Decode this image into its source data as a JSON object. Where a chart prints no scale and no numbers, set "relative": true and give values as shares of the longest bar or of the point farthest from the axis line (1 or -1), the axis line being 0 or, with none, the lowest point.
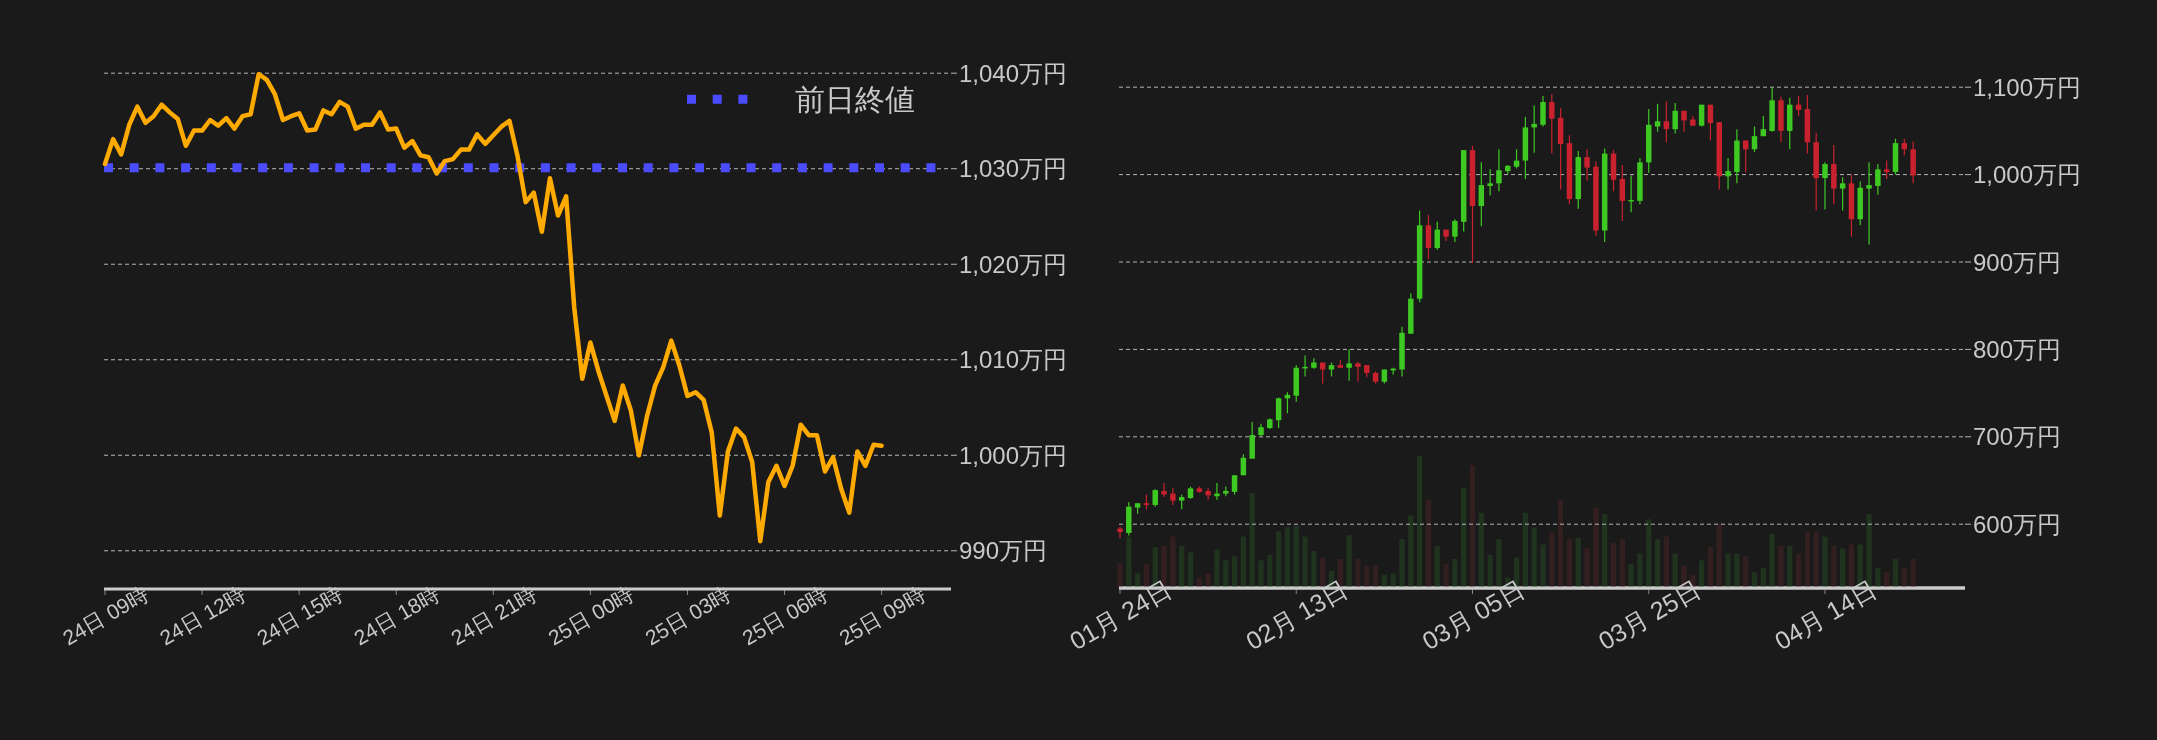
{
  "chart_data": [
    {
      "type": "line",
      "ylim": [
        986,
        1040
      ],
      "grid": "y",
      "legend": "top right",
      "categories": [
        "24日 09時",
        null,
        null,
        null,
        null,
        null,
        null,
        null,
        null,
        null,
        null,
        null,
        "24日 12時",
        null,
        null,
        null,
        null,
        null,
        null,
        null,
        null,
        null,
        null,
        null,
        "24日 15時",
        null,
        null,
        null,
        null,
        null,
        null,
        null,
        null,
        null,
        null,
        null,
        "24日 18時",
        null,
        null,
        null,
        null,
        null,
        null,
        null,
        null,
        null,
        null,
        null,
        "24日 21時",
        null,
        null,
        null,
        null,
        null,
        null,
        null,
        null,
        null,
        null,
        null,
        "25日 00時",
        null,
        null,
        null,
        null,
        null,
        null,
        null,
        null,
        null,
        null,
        null,
        "25日 03時",
        null,
        null,
        null,
        null,
        null,
        null,
        null,
        null,
        null,
        null,
        null,
        "25日 06時",
        null,
        null,
        null,
        null,
        null,
        null,
        null,
        null,
        null,
        null,
        null,
        "25日 09時"
      ],
      "yticks": [
        {
          "value": 990,
          "label": "990万円"
        },
        {
          "value": 1000,
          "label": "1,000万円"
        },
        {
          "value": 1010,
          "label": "1,010万円"
        },
        {
          "value": 1020,
          "label": "1,020万円"
        },
        {
          "value": 1030,
          "label": "1,030万円"
        },
        {
          "value": 1040,
          "label": "1,040万円"
        }
      ],
      "ref_lines": [
        {
          "axis": "y",
          "value": 1030.1,
          "label": "前日終値",
          "color": "#4b4bff",
          "line_style": "dotted"
        }
      ],
      "series": [
        {
          "color": "#ffaa00",
          "values": [
            1030.5,
            1033.1,
            1031.5,
            1034.6,
            1036.5,
            1034.8,
            1035.5,
            1036.7,
            1035.9,
            1035.2,
            1032.4,
            1034.0,
            1034.0,
            1035.1,
            1034.5,
            1035.3,
            1034.2,
            1035.5,
            1035.7,
            1039.9,
            1039.3,
            1037.8,
            1035.1,
            1035.5,
            1035.8,
            1034.0,
            1034.1,
            1036.1,
            1035.7,
            1037.0,
            1036.5,
            1034.2,
            1034.6,
            1034.6,
            1035.9,
            1034.1,
            1034.2,
            1032.2,
            1032.9,
            1031.4,
            1031.2,
            1029.5,
            1030.8,
            1031.0,
            1032.0,
            1032.0,
            1033.6,
            1032.6,
            1033.5,
            1034.4,
            1035.0,
            1031.3,
            1026.5,
            1027.5,
            1023.4,
            1029.0,
            1025.1,
            1027.1,
            1015.5,
            1008.0,
            1011.8,
            1008.8,
            1006.2,
            1003.6,
            1007.3,
            1004.7,
            1000.0,
            1004.1,
            1007.3,
            1009.2,
            1012.0,
            1009.4,
            1006.2,
            1006.6,
            1005.8,
            1002.4,
            993.7,
            1000.4,
            1002.8,
            1001.9,
            999.3,
            991.0,
            997.2,
            998.9,
            996.8,
            998.9,
            1003.2,
            1002.1,
            1002.1,
            998.3,
            999.8,
            996.5,
            994.0,
            1000.4,
            998.9,
            1001.1,
            1001.0
          ]
        }
      ]
    },
    {
      "type": "candlestick",
      "ylim": [
        527,
        1100
      ],
      "grid": "y",
      "yticks": [
        {
          "value": 600,
          "label": "600万円"
        },
        {
          "value": 700,
          "label": "700万円"
        },
        {
          "value": 800,
          "label": "800万円"
        },
        {
          "value": 900,
          "label": "900万円"
        },
        {
          "value": 1000,
          "label": "1,000万円"
        },
        {
          "value": 1100,
          "label": "1,100万円"
        }
      ],
      "categories": [
        "01月 24日",
        null,
        null,
        null,
        null,
        null,
        null,
        null,
        null,
        null,
        null,
        null,
        null,
        null,
        null,
        null,
        null,
        null,
        null,
        null,
        "02月 13日",
        null,
        null,
        null,
        null,
        null,
        null,
        null,
        null,
        null,
        null,
        null,
        null,
        null,
        null,
        null,
        null,
        null,
        null,
        null,
        "03月 05日",
        null,
        null,
        null,
        null,
        null,
        null,
        null,
        null,
        null,
        null,
        null,
        null,
        null,
        null,
        null,
        null,
        null,
        null,
        null,
        "03月 25日",
        null,
        null,
        null,
        null,
        null,
        null,
        null,
        null,
        null,
        null,
        null,
        null,
        null,
        null,
        null,
        null,
        null,
        null,
        null,
        "04月 14日",
        null,
        null,
        null,
        null,
        null,
        null,
        null,
        null,
        null,
        null
      ],
      "ohlc": [
        [
          595,
          597,
          584,
          591
        ],
        [
          590,
          625,
          587,
          620
        ],
        [
          619,
          624,
          612,
          624
        ],
        [
          624,
          634,
          617,
          622
        ],
        [
          622,
          640,
          620,
          639
        ],
        [
          638,
          647,
          631,
          634
        ],
        [
          635,
          641,
          622,
          627
        ],
        [
          627,
          634,
          617,
          631
        ],
        [
          630,
          643,
          629,
          641
        ],
        [
          641,
          643,
          636,
          637
        ],
        [
          638,
          641,
          628,
          633
        ],
        [
          632,
          647,
          628,
          635
        ],
        [
          635,
          643,
          632,
          638
        ],
        [
          637,
          656,
          634,
          656
        ],
        [
          656,
          680,
          656,
          676
        ],
        [
          675,
          717,
          675,
          702
        ],
        [
          702,
          715,
          701,
          711
        ],
        [
          710,
          721,
          709,
          720
        ],
        [
          719,
          745,
          710,
          744
        ],
        [
          744,
          751,
          727,
          748
        ],
        [
          747,
          782,
          740,
          779
        ],
        [
          779,
          793,
          769,
          780
        ],
        [
          779,
          790,
          778,
          785
        ],
        [
          785,
          785,
          761,
          777
        ],
        [
          777,
          785,
          769,
          782
        ],
        [
          782,
          788,
          779,
          779
        ],
        [
          779,
          800,
          764,
          784
        ],
        [
          784,
          786,
          763,
          780
        ],
        [
          782,
          782,
          768,
          773
        ],
        [
          773,
          775,
          761,
          763
        ],
        [
          763,
          777,
          761,
          777
        ],
        [
          776,
          779,
          771,
          778
        ],
        [
          777,
          826,
          769,
          819
        ],
        [
          818,
          864,
          818,
          858
        ],
        [
          858,
          959,
          854,
          942
        ],
        [
          942,
          954,
          903,
          916
        ],
        [
          916,
          946,
          914,
          937
        ],
        [
          937,
          937,
          924,
          929
        ],
        [
          929,
          949,
          923,
          947
        ],
        [
          946,
          1028,
          935,
          1028
        ],
        [
          1028,
          1033,
          899,
          964
        ],
        [
          964,
          1014,
          941,
          988
        ],
        [
          987,
          1006,
          976,
          990
        ],
        [
          990,
          1029,
          981,
          1005
        ],
        [
          1004,
          1011,
          1001,
          1010
        ],
        [
          1009,
          1029,
          1007,
          1016
        ],
        [
          1016,
          1066,
          995,
          1054
        ],
        [
          1054,
          1079,
          1025,
          1058
        ],
        [
          1057,
          1090,
          1055,
          1083
        ],
        [
          1083,
          1092,
          1024,
          1064
        ],
        [
          1065,
          1076,
          983,
          1035
        ],
        [
          1036,
          1045,
          966,
          972
        ],
        [
          972,
          1027,
          961,
          1020
        ],
        [
          1020,
          1029,
          993,
          1008
        ],
        [
          1009,
          1015,
          930,
          936
        ],
        [
          936,
          1030,
          923,
          1024
        ],
        [
          1024,
          1028,
          981,
          994
        ],
        [
          995,
          1011,
          947,
          970
        ],
        [
          970,
          999,
          957,
          971
        ],
        [
          970,
          1019,
          966,
          1014
        ],
        [
          1014,
          1075,
          1002,
          1057
        ],
        [
          1055,
          1081,
          1049,
          1061
        ],
        [
          1061,
          1084,
          1037,
          1052
        ],
        [
          1052,
          1082,
          1047,
          1073
        ],
        [
          1073,
          1073,
          1049,
          1062
        ],
        [
          1063,
          1067,
          1056,
          1056
        ],
        [
          1056,
          1080,
          1055,
          1080
        ],
        [
          1080,
          1080,
          1039,
          1059
        ],
        [
          1060,
          1060,
          983,
          998
        ],
        [
          998,
          1019,
          983,
          1004
        ],
        [
          1003,
          1052,
          990,
          1039
        ],
        [
          1039,
          1039,
          1003,
          1029
        ],
        [
          1029,
          1055,
          1026,
          1044
        ],
        [
          1044,
          1067,
          1044,
          1052
        ],
        [
          1050,
          1100,
          1049,
          1085
        ],
        [
          1085,
          1089,
          1037,
          1050
        ],
        [
          1050,
          1088,
          1029,
          1080
        ],
        [
          1080,
          1090,
          1067,
          1074
        ],
        [
          1075,
          1091,
          1024,
          1037
        ],
        [
          1037,
          1048,
          959,
          996
        ],
        [
          996,
          1014,
          960,
          1012
        ],
        [
          1012,
          1034,
          966,
          984
        ],
        [
          984,
          997,
          959,
          990
        ],
        [
          990,
          1000,
          929,
          949
        ],
        [
          949,
          992,
          942,
          985
        ],
        [
          984,
          1014,
          920,
          988
        ],
        [
          987,
          1012,
          977,
          1006
        ],
        [
          1006,
          1016,
          995,
          1003
        ],
        [
          1003,
          1041,
          1000,
          1036
        ],
        [
          1036,
          1041,
          1022,
          1029
        ],
        [
          1029,
          1038,
          990,
          999
        ]
      ]
    },
    {
      "type": "bar",
      "relative": true,
      "categories": [
        null,
        null,
        null,
        null,
        null,
        null,
        null,
        null,
        null,
        null,
        null,
        null,
        null,
        null,
        null,
        null,
        null,
        null,
        null,
        null,
        null,
        null,
        null,
        null,
        null,
        null,
        null,
        null,
        null,
        null,
        null,
        null,
        null,
        null,
        null,
        null,
        null,
        null,
        null,
        null,
        null,
        null,
        null,
        null,
        null,
        null,
        null,
        null,
        null,
        null,
        null,
        null,
        null,
        null,
        null,
        null,
        null,
        null,
        null,
        null,
        null,
        null,
        null,
        null,
        null,
        null,
        null,
        null,
        null,
        null,
        null,
        null,
        null,
        null,
        null,
        null,
        null,
        null,
        null,
        null,
        null,
        null,
        null,
        null,
        null,
        null,
        null,
        null,
        null,
        null,
        null
      ],
      "values": [
        0.19,
        0.39,
        0.11,
        0.18,
        0.31,
        0.32,
        0.39,
        0.32,
        0.27,
        0.08,
        0.11,
        0.29,
        0.21,
        0.24,
        0.39,
        0.72,
        0.21,
        0.25,
        0.43,
        0.46,
        0.47,
        0.39,
        0.28,
        0.23,
        0.13,
        0.22,
        0.4,
        0.22,
        0.17,
        0.17,
        0.1,
        0.11,
        0.37,
        0.55,
        1,
        0.67,
        0.32,
        0.18,
        0.22,
        0.76,
        0.93,
        0.57,
        0.25,
        0.37,
        0.08,
        0.23,
        0.57,
        0.46,
        0.33,
        0.42,
        0.67,
        0.37,
        0.38,
        0.3,
        0.61,
        0.56,
        0.34,
        0.37,
        0.18,
        0.26,
        0.52,
        0.37,
        0.39,
        0.26,
        0.17,
        0.1,
        0.21,
        0.31,
        0.49,
        0.26,
        0.26,
        0.24,
        0.12,
        0.15,
        0.41,
        0.32,
        0.32,
        0.26,
        0.43,
        0.43,
        0.39,
        0.32,
        0.3,
        0.33,
        0.33,
        0.56,
        0.15,
        0.12,
        0.22,
        0.15,
        0.22
      ],
      "colors": [
        "#331f1f",
        "#1f331f",
        "#1f331f",
        "#331f1f",
        "#1f331f",
        "#331f1f",
        "#331f1f",
        "#1f331f",
        "#1f331f",
        "#331f1f",
        "#331f1f",
        "#1f331f",
        "#1f331f",
        "#1f331f",
        "#1f331f",
        "#1f331f",
        "#1f331f",
        "#1f331f",
        "#1f331f",
        "#1f331f",
        "#1f331f",
        "#1f331f",
        "#1f331f",
        "#331f1f",
        "#1f331f",
        "#331f1f",
        "#1f331f",
        "#331f1f",
        "#331f1f",
        "#331f1f",
        "#1f331f",
        "#1f331f",
        "#1f331f",
        "#1f331f",
        "#1f331f",
        "#331f1f",
        "#1f331f",
        "#331f1f",
        "#1f331f",
        "#1f331f",
        "#331f1f",
        "#1f331f",
        "#1f331f",
        "#1f331f",
        "#1f331f",
        "#1f331f",
        "#1f331f",
        "#1f331f",
        "#1f331f",
        "#331f1f",
        "#331f1f",
        "#331f1f",
        "#1f331f",
        "#331f1f",
        "#331f1f",
        "#1f331f",
        "#331f1f",
        "#331f1f",
        "#1f331f",
        "#1f331f",
        "#1f331f",
        "#1f331f",
        "#331f1f",
        "#1f331f",
        "#331f1f",
        "#331f1f",
        "#1f331f",
        "#331f1f",
        "#331f1f",
        "#1f331f",
        "#1f331f",
        "#331f1f",
        "#1f331f",
        "#1f331f",
        "#1f331f",
        "#331f1f",
        "#1f331f",
        "#331f1f",
        "#331f1f",
        "#331f1f",
        "#1f331f",
        "#331f1f",
        "#1f331f",
        "#331f1f",
        "#1f331f",
        "#1f331f",
        "#1f331f",
        "#331f1f",
        "#1f331f",
        "#331f1f",
        "#331f1f"
      ]
    }
  ]
}
